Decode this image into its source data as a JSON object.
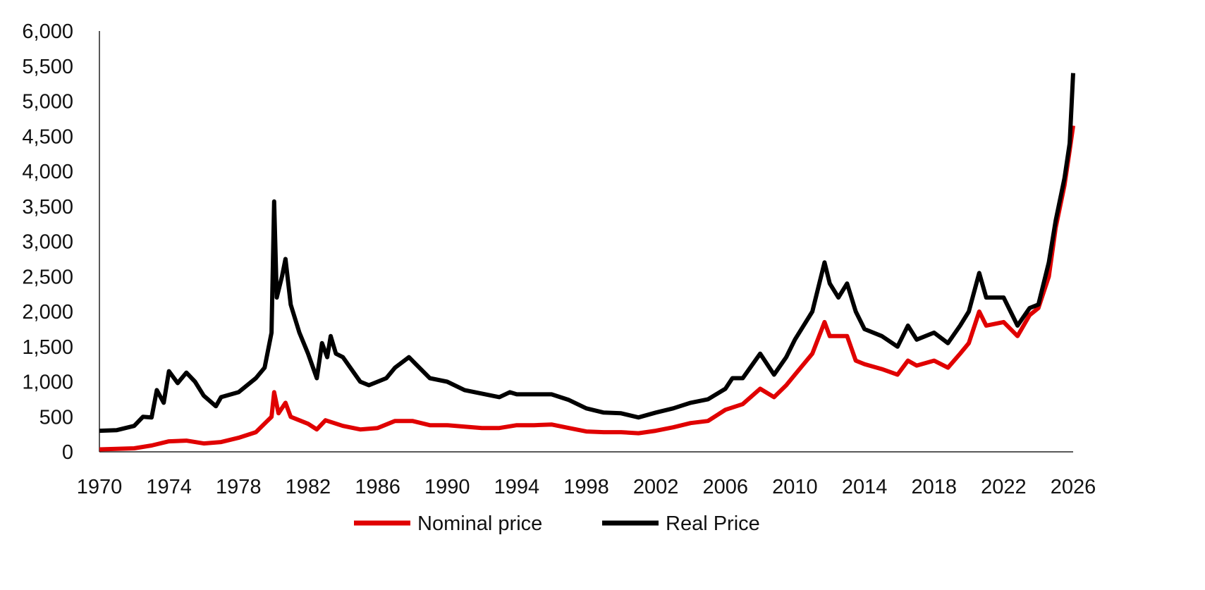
{
  "chart_data": {
    "type": "line",
    "title": "",
    "xlabel": "",
    "ylabel": "",
    "xlim": [
      1970,
      2026
    ],
    "ylim": [
      0,
      6000
    ],
    "x_ticks": [
      "1970",
      "1974",
      "1978",
      "1982",
      "1986",
      "1990",
      "1994",
      "1998",
      "2002",
      "2006",
      "2010",
      "2014",
      "2018",
      "2022",
      "2026"
    ],
    "y_ticks": [
      "0",
      "500",
      "1,000",
      "1,500",
      "2,000",
      "2,500",
      "3,000",
      "3,500",
      "4,000",
      "4,500",
      "5,000",
      "5,500",
      "6,000"
    ],
    "grid": false,
    "legend_position": "bottom",
    "series": [
      {
        "name": "Nominal price",
        "color": "#e00000",
        "points": [
          [
            1970,
            35
          ],
          [
            1972,
            50
          ],
          [
            1973,
            90
          ],
          [
            1974,
            150
          ],
          [
            1975,
            160
          ],
          [
            1976,
            120
          ],
          [
            1977,
            140
          ],
          [
            1978,
            200
          ],
          [
            1979,
            280
          ],
          [
            1979.9,
            500
          ],
          [
            1980.05,
            850
          ],
          [
            1980.3,
            550
          ],
          [
            1980.7,
            700
          ],
          [
            1981,
            500
          ],
          [
            1982,
            400
          ],
          [
            1982.5,
            320
          ],
          [
            1983,
            450
          ],
          [
            1984,
            370
          ],
          [
            1985,
            320
          ],
          [
            1986,
            340
          ],
          [
            1987,
            440
          ],
          [
            1988,
            440
          ],
          [
            1989,
            380
          ],
          [
            1990,
            380
          ],
          [
            1991,
            360
          ],
          [
            1992,
            340
          ],
          [
            1993,
            340
          ],
          [
            1994,
            380
          ],
          [
            1995,
            380
          ],
          [
            1996,
            390
          ],
          [
            1997,
            340
          ],
          [
            1998,
            290
          ],
          [
            1999,
            280
          ],
          [
            2000,
            280
          ],
          [
            2001,
            265
          ],
          [
            2002,
            300
          ],
          [
            2003,
            350
          ],
          [
            2004,
            410
          ],
          [
            2005,
            440
          ],
          [
            2006,
            600
          ],
          [
            2007,
            680
          ],
          [
            2008,
            900
          ],
          [
            2008.8,
            780
          ],
          [
            2009.5,
            950
          ],
          [
            2010,
            1100
          ],
          [
            2011,
            1400
          ],
          [
            2011.7,
            1850
          ],
          [
            2012,
            1650
          ],
          [
            2013,
            1650
          ],
          [
            2013.5,
            1300
          ],
          [
            2014,
            1250
          ],
          [
            2015,
            1180
          ],
          [
            2015.9,
            1100
          ],
          [
            2016.5,
            1300
          ],
          [
            2017,
            1230
          ],
          [
            2018,
            1300
          ],
          [
            2018.8,
            1200
          ],
          [
            2019.5,
            1400
          ],
          [
            2020,
            1550
          ],
          [
            2020.6,
            2000
          ],
          [
            2021,
            1800
          ],
          [
            2022,
            1850
          ],
          [
            2022.8,
            1650
          ],
          [
            2023.5,
            1950
          ],
          [
            2024,
            2050
          ],
          [
            2024.6,
            2500
          ],
          [
            2025,
            3200
          ],
          [
            2025.5,
            3800
          ],
          [
            2025.8,
            4300
          ],
          [
            2026,
            4650
          ]
        ]
      },
      {
        "name": "Real Price",
        "color": "#000000",
        "points": [
          [
            1970,
            300
          ],
          [
            1971,
            310
          ],
          [
            1972,
            370
          ],
          [
            1972.5,
            500
          ],
          [
            1973,
            490
          ],
          [
            1973.3,
            880
          ],
          [
            1973.7,
            700
          ],
          [
            1974,
            1150
          ],
          [
            1974.5,
            980
          ],
          [
            1975,
            1130
          ],
          [
            1975.5,
            1000
          ],
          [
            1976,
            800
          ],
          [
            1976.7,
            650
          ],
          [
            1977,
            780
          ],
          [
            1978,
            850
          ],
          [
            1979,
            1050
          ],
          [
            1979.5,
            1200
          ],
          [
            1979.9,
            1700
          ],
          [
            1980.05,
            3570
          ],
          [
            1980.2,
            2200
          ],
          [
            1980.5,
            2500
          ],
          [
            1980.7,
            2750
          ],
          [
            1981,
            2100
          ],
          [
            1981.5,
            1700
          ],
          [
            1982,
            1400
          ],
          [
            1982.5,
            1050
          ],
          [
            1982.8,
            1550
          ],
          [
            1983.1,
            1350
          ],
          [
            1983.3,
            1650
          ],
          [
            1983.6,
            1400
          ],
          [
            1984,
            1350
          ],
          [
            1985,
            1000
          ],
          [
            1985.5,
            950
          ],
          [
            1986,
            1000
          ],
          [
            1986.5,
            1050
          ],
          [
            1987,
            1200
          ],
          [
            1987.8,
            1350
          ],
          [
            1988.2,
            1250
          ],
          [
            1989,
            1050
          ],
          [
            1990,
            1000
          ],
          [
            1991,
            880
          ],
          [
            1992,
            830
          ],
          [
            1993,
            780
          ],
          [
            1993.6,
            850
          ],
          [
            1994,
            820
          ],
          [
            1995,
            820
          ],
          [
            1996,
            820
          ],
          [
            1997,
            740
          ],
          [
            1998,
            620
          ],
          [
            1999,
            560
          ],
          [
            2000,
            550
          ],
          [
            2001,
            490
          ],
          [
            2002,
            560
          ],
          [
            2003,
            620
          ],
          [
            2004,
            700
          ],
          [
            2005,
            750
          ],
          [
            2006,
            900
          ],
          [
            2006.4,
            1050
          ],
          [
            2007,
            1050
          ],
          [
            2008,
            1400
          ],
          [
            2008.8,
            1100
          ],
          [
            2009.5,
            1350
          ],
          [
            2010,
            1600
          ],
          [
            2011,
            2000
          ],
          [
            2011.7,
            2700
          ],
          [
            2012,
            2400
          ],
          [
            2012.5,
            2200
          ],
          [
            2013,
            2400
          ],
          [
            2013.5,
            2000
          ],
          [
            2014,
            1750
          ],
          [
            2015,
            1650
          ],
          [
            2015.9,
            1500
          ],
          [
            2016.5,
            1800
          ],
          [
            2017,
            1600
          ],
          [
            2018,
            1700
          ],
          [
            2018.8,
            1550
          ],
          [
            2019.5,
            1800
          ],
          [
            2020,
            2000
          ],
          [
            2020.6,
            2550
          ],
          [
            2021,
            2200
          ],
          [
            2022,
            2200
          ],
          [
            2022.8,
            1800
          ],
          [
            2023.5,
            2050
          ],
          [
            2024,
            2100
          ],
          [
            2024.6,
            2700
          ],
          [
            2025,
            3300
          ],
          [
            2025.5,
            3900
          ],
          [
            2025.8,
            4400
          ],
          [
            2026,
            5400
          ]
        ]
      }
    ]
  }
}
